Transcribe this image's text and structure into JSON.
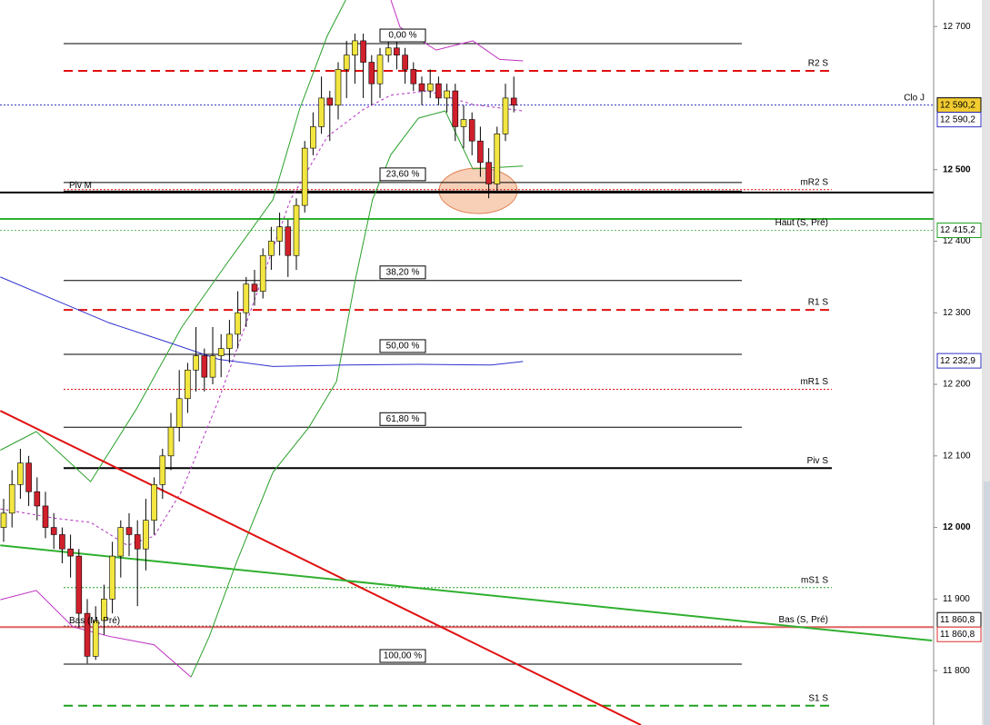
{
  "chart_data": {
    "type": "candlestick",
    "ylim": [
      11724,
      12737
    ],
    "yticks": [
      {
        "value": 12700,
        "label": "12 700"
      },
      {
        "value": 12500,
        "label": "12 500",
        "weight": "bold"
      },
      {
        "value": 12400,
        "label": "12 400"
      },
      {
        "value": 12300,
        "label": "12 300"
      },
      {
        "value": 12200,
        "label": "12 200"
      },
      {
        "value": 12100,
        "label": "12 100"
      },
      {
        "value": 12000,
        "label": "12 000",
        "weight": "bold"
      },
      {
        "value": 11900,
        "label": "11 900"
      },
      {
        "value": 11800,
        "label": "11 800"
      }
    ],
    "up_color": "#f2e640",
    "down_color": "#d0202c",
    "open": [
      12000,
      12020,
      12060,
      12090,
      12050,
      12030,
      12000,
      11990,
      11970,
      11960,
      11880,
      11820,
      11870,
      11900,
      11960,
      12000,
      11990,
      11970,
      12010,
      12060,
      12100,
      12140,
      12180,
      12220,
      12240,
      12210,
      12240,
      12250,
      12270,
      12300,
      12340,
      12330,
      12380,
      12400,
      12420,
      12380,
      12450,
      12530,
      12560,
      12600,
      12590,
      12640,
      12660,
      12680,
      12650,
      12620,
      12660,
      12670,
      12660,
      12640,
      12620,
      12610,
      12620,
      12600,
      12610,
      12560,
      12570,
      12540,
      12510,
      12480,
      12550,
      12600
    ],
    "high": [
      12040,
      12080,
      12110,
      12100,
      12070,
      12050,
      12020,
      12000,
      11990,
      11970,
      11900,
      11890,
      11920,
      11980,
      12010,
      12020,
      12010,
      12040,
      12070,
      12110,
      12160,
      12220,
      12230,
      12280,
      12250,
      12280,
      12270,
      12290,
      12330,
      12350,
      12360,
      12390,
      12420,
      12440,
      12430,
      12460,
      12540,
      12580,
      12630,
      12610,
      12650,
      12680,
      12690,
      12690,
      12660,
      12670,
      12690,
      12680,
      12670,
      12650,
      12630,
      12640,
      12630,
      12620,
      12620,
      12590,
      12580,
      12560,
      12530,
      12560,
      12620,
      12630
    ],
    "low": [
      11980,
      12000,
      12040,
      12030,
      12010,
      11985,
      11970,
      11950,
      11930,
      11860,
      11810,
      11815,
      11850,
      11880,
      11930,
      11960,
      11890,
      11940,
      11990,
      12040,
      12080,
      12120,
      12160,
      12190,
      12190,
      12200,
      12210,
      12230,
      12250,
      12280,
      12310,
      12320,
      12360,
      12380,
      12350,
      12360,
      12440,
      12520,
      12550,
      12540,
      12570,
      12600,
      12620,
      12600,
      12590,
      12600,
      12650,
      12640,
      12620,
      12610,
      12590,
      12600,
      12590,
      12580,
      12540,
      12530,
      12520,
      12490,
      12460,
      12470,
      12540,
      12580
    ],
    "close": [
      12020,
      12060,
      12090,
      12050,
      12030,
      12000,
      11990,
      11970,
      11960,
      11880,
      11820,
      11870,
      11900,
      11960,
      12000,
      11990,
      11970,
      12010,
      12060,
      12100,
      12140,
      12180,
      12220,
      12240,
      12210,
      12240,
      12250,
      12270,
      12300,
      12340,
      12330,
      12380,
      12400,
      12420,
      12380,
      12450,
      12530,
      12560,
      12600,
      12590,
      12640,
      12660,
      12680,
      12650,
      12620,
      12660,
      12670,
      12660,
      12640,
      12620,
      12610,
      12620,
      12600,
      12610,
      12560,
      12570,
      12540,
      12510,
      12480,
      12550,
      12600,
      12590
    ],
    "overlays": [
      {
        "color": "#2aa02a",
        "style": "solid",
        "x": [
          -0.4,
          3.9,
          10.4,
          15.9,
          21.3,
          26.7,
          32.2,
          35.4,
          38.7,
          40.9
        ],
        "values": [
          12108,
          12134,
          12064,
          12166,
          12280,
          12369,
          12458,
          12585,
          12687,
          12737
        ]
      },
      {
        "color": "#c030c0",
        "style": "solid",
        "x": [
          46.3,
          47.4,
          51.7,
          56.1,
          59.3,
          62.1
        ],
        "values": [
          12737,
          12699,
          12667,
          12680,
          12654,
          12652
        ]
      },
      {
        "color": "#c030c0",
        "style": "solid",
        "x": [
          -0.4,
          3.9,
          8.3,
          12.6,
          18,
          22.4
        ],
        "values": [
          11899,
          11912,
          11861,
          11848,
          11836,
          11791
        ]
      },
      {
        "color": "#2aa02a",
        "style": "solid",
        "x": [
          22.4,
          24.6,
          27.8,
          32.2,
          36.5,
          39.8,
          42,
          44.1,
          46.3,
          49.6,
          52.8,
          56.1,
          62.1
        ],
        "values": [
          11791,
          11848,
          11950,
          12077,
          12140,
          12204,
          12343,
          12458,
          12521,
          12572,
          12582,
          12501,
          12505
        ]
      },
      {
        "color": "#b030c0",
        "style": "dashed",
        "x": [
          -0.4,
          6.1,
          10.4,
          14.8,
          18,
          21.3,
          25.7,
          30,
          34.3,
          38.7,
          43,
          46.3,
          50.7,
          56.1,
          62.1
        ],
        "values": [
          12026,
          12013,
          12007,
          11975,
          11988,
          12051,
          12178,
          12318,
          12458,
          12546,
          12584,
          12604,
          12610,
          12591,
          12582
        ]
      },
      {
        "color": "#3030d0",
        "style": "solid",
        "x": [
          -0.4,
          6.1,
          12.6,
          19.1,
          25.7,
          32.2,
          40.9,
          49.6,
          58.3,
          62.1
        ],
        "values": [
          12350,
          12318,
          12286,
          12261,
          12235,
          12225,
          12227,
          12228,
          12227,
          12232
        ]
      },
      {
        "color": "#e01010",
        "style": "thick",
        "x": [
          -0.4,
          76.2
        ],
        "values": [
          12163,
          11724
        ]
      },
      {
        "color": "#30b030",
        "style": "thick",
        "x": [
          -0.4,
          111
        ],
        "values": [
          11975,
          11842
        ]
      }
    ],
    "levels": [
      {
        "label": "0,00 %",
        "value": 12676,
        "kind": "fib",
        "color": "#000",
        "style": "solid"
      },
      {
        "label": "23,60 %",
        "value": 12482,
        "kind": "fib",
        "color": "#000",
        "style": "solid"
      },
      {
        "label": "38,20 %",
        "value": 12345,
        "kind": "fib",
        "color": "#000",
        "style": "solid"
      },
      {
        "label": "50,00 %",
        "value": 12242,
        "kind": "fib",
        "color": "#000",
        "style": "solid"
      },
      {
        "label": "61,80 %",
        "value": 12140,
        "kind": "fib",
        "color": "#000",
        "style": "solid"
      },
      {
        "label": "100,00 %",
        "value": 11809,
        "kind": "fib",
        "color": "#000",
        "style": "solid"
      },
      {
        "label": "R2 S",
        "value": 12638,
        "kind": "pivot",
        "color": "#e01010",
        "style": "longdash"
      },
      {
        "label": "mR2 S",
        "value": 12472,
        "kind": "pivot",
        "color": "#e01010",
        "style": "dotted"
      },
      {
        "label": "Piv M",
        "value": 12470,
        "kind": "left",
        "color": "#000",
        "style": "solid"
      },
      {
        "label": "R1 S",
        "value": 12304,
        "kind": "pivot",
        "color": "#e01010",
        "style": "longdash"
      },
      {
        "label": "mR1 S",
        "value": 12193,
        "kind": "pivot",
        "color": "#e01010",
        "style": "dotted"
      },
      {
        "label": "Piv S",
        "value": 12083,
        "kind": "pivot",
        "color": "#000",
        "style": "thick"
      },
      {
        "label": "mS1 S",
        "value": 11916,
        "kind": "pivot",
        "color": "#20a020",
        "style": "dotted"
      },
      {
        "label": "S1 S",
        "value": 11751,
        "kind": "pivot",
        "color": "#20a020",
        "style": "longdash"
      },
      {
        "label": "Bas (M, Pré)",
        "value": 11862,
        "kind": "left",
        "color": "#000",
        "style": "dotted"
      },
      {
        "label": "Bas (S, Pré)",
        "value": 11860.8,
        "kind": "full",
        "color": "#e06060",
        "style": "thick"
      },
      {
        "label": "Haut (S, Pré)",
        "value": 12415.2,
        "kind": "full",
        "color": "#60c060",
        "style": "dotted"
      },
      {
        "label": "Clo J",
        "value": 12590.2,
        "kind": "full",
        "color": "#3030c0",
        "style": "dotted"
      }
    ],
    "full_lines": [
      {
        "value": 12468,
        "color": "#000"
      },
      {
        "value": 12431,
        "color": "#30b030"
      }
    ],
    "price_labels": [
      {
        "value": 12590.2,
        "label": "12 590,2",
        "color": "#000",
        "bg": "#f2cc30",
        "offset": 0
      },
      {
        "value": 12590.2,
        "label": "12 590,2",
        "color": "#3030c0",
        "bg": "#fff",
        "offset": 1
      },
      {
        "value": 12415.2,
        "label": "12 415,2",
        "color": "#20a020",
        "bg": "#fff",
        "offset": 0
      },
      {
        "value": 12232.9,
        "label": "12 232,9",
        "color": "#3030c0",
        "bg": "#fff",
        "offset": 0
      },
      {
        "value": 11860.8,
        "label": "11 860,8",
        "color": "#000",
        "bg": "#fff",
        "offset": -0.5
      },
      {
        "value": 11860.8,
        "label": "11 860,8",
        "color": "#e03030",
        "bg": "#fff",
        "offset": 0.5
      }
    ]
  }
}
